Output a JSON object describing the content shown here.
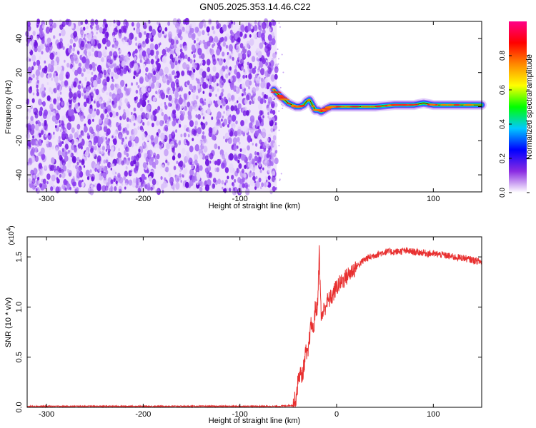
{
  "title": "GN05.2025.353.14.46.C22",
  "chart_data": [
    {
      "type": "heatmap",
      "xlabel": "Height of straight line (km)",
      "ylabel": "Frequency (Hz)",
      "xlim": [
        -320,
        150
      ],
      "ylim": [
        -50,
        50
      ],
      "xticks": [
        -300,
        -200,
        -100,
        0,
        100
      ],
      "yticks": [
        -40,
        -20,
        0,
        20,
        40
      ],
      "noise_region": [
        -320,
        -62
      ],
      "signal_trace": {
        "x": [
          -65,
          -62,
          -58,
          -54,
          -50,
          -46,
          -42,
          -38,
          -34,
          -31,
          -28,
          -25,
          -22,
          -19,
          -16,
          -13,
          -10,
          -6,
          -2,
          0,
          20,
          40,
          60,
          80,
          90,
          100,
          120,
          150
        ],
        "y": [
          10,
          8,
          6,
          4,
          2,
          1,
          0,
          0,
          1,
          3,
          4,
          1,
          -2,
          -2,
          -3,
          -2,
          -1,
          0,
          0,
          0,
          0,
          0,
          1,
          1,
          2,
          1,
          1,
          1
        ]
      },
      "colorbar": {
        "label": "Normalized spectral amplitude",
        "range": [
          0,
          1
        ],
        "ticks": [
          "0.0",
          "0.2",
          "0.4",
          "0.6",
          "0.8"
        ],
        "colors": [
          "#ffffff",
          "#8a2be2",
          "#0000ff",
          "#00c8ff",
          "#00ff00",
          "#ffff00",
          "#ff8800",
          "#ff0000",
          "#ff0088"
        ]
      },
      "grid": false
    },
    {
      "type": "line",
      "xlabel": "Height of straight line (km)",
      "ylabel": "SNR (10 * v/v)",
      "exponent_label": "(x10",
      "exponent_power": "4",
      "exponent_close": ")",
      "xlim": [
        -320,
        150
      ],
      "ylim": [
        0,
        1.7
      ],
      "xticks": [
        -300,
        -200,
        -100,
        0,
        100
      ],
      "yticks": [
        "0.0",
        "0.5",
        "1.0",
        "1.5"
      ],
      "series": [
        {
          "color": "#e83030",
          "x": [
            -320,
            -300,
            -250,
            -200,
            -150,
            -100,
            -60,
            -45,
            -42,
            -40,
            -38,
            -36,
            -34,
            -32,
            -30,
            -28,
            -26,
            -24,
            -22,
            -20,
            -18,
            -16,
            -14,
            -12,
            -10,
            -5,
            0,
            5,
            10,
            20,
            30,
            40,
            50,
            60,
            70,
            80,
            90,
            100,
            110,
            120,
            130,
            140,
            150
          ],
          "y": [
            0.01,
            0.01,
            0.01,
            0.01,
            0.01,
            0.01,
            0.01,
            0.02,
            0.1,
            0.25,
            0.35,
            0.3,
            0.4,
            0.55,
            0.5,
            0.7,
            0.85,
            0.75,
            1.0,
            0.95,
            1.55,
            0.9,
            0.95,
            1.0,
            1.05,
            1.1,
            1.2,
            1.25,
            1.3,
            1.4,
            1.48,
            1.52,
            1.55,
            1.55,
            1.56,
            1.55,
            1.54,
            1.53,
            1.52,
            1.5,
            1.49,
            1.47,
            1.45
          ]
        }
      ],
      "grid": false
    }
  ]
}
